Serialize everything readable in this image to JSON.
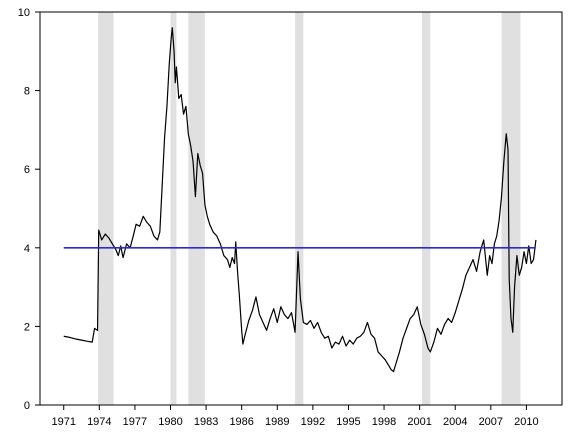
{
  "chart_data": {
    "type": "line",
    "title": "",
    "xlabel": "",
    "ylabel": "",
    "xlim": [
      1969.0,
      2013.0
    ],
    "ylim": [
      0,
      10
    ],
    "grid": false,
    "x_ticks": [
      {
        "value": 1971,
        "label": "1971"
      },
      {
        "value": 1974,
        "label": "1974"
      },
      {
        "value": 1977,
        "label": "1977"
      },
      {
        "value": 1980,
        "label": "1980"
      },
      {
        "value": 1983,
        "label": "1983"
      },
      {
        "value": 1986,
        "label": "1986"
      },
      {
        "value": 1989,
        "label": "1989"
      },
      {
        "value": 1992,
        "label": "1992"
      },
      {
        "value": 1995,
        "label": "1995"
      },
      {
        "value": 1998,
        "label": "1998"
      },
      {
        "value": 2001,
        "label": "2001"
      },
      {
        "value": 2004,
        "label": "2004"
      },
      {
        "value": 2007,
        "label": "2007"
      },
      {
        "value": 2010,
        "label": "2010"
      }
    ],
    "y_ticks": [
      {
        "value": 0,
        "label": "0"
      },
      {
        "value": 2,
        "label": "2"
      },
      {
        "value": 4,
        "label": "4"
      },
      {
        "value": 6,
        "label": "6"
      },
      {
        "value": 8,
        "label": "8"
      },
      {
        "value": 10,
        "label": "10"
      }
    ],
    "shaded_periods": [
      [
        1973.9,
        1975.2
      ],
      [
        1980.0,
        1980.5
      ],
      [
        1981.5,
        1982.9
      ],
      [
        1990.5,
        1991.2
      ],
      [
        2001.2,
        2001.9
      ],
      [
        2007.9,
        2009.5
      ]
    ],
    "shade_color": "#e0e0e0",
    "series": [
      {
        "color": "#000000",
        "points": [
          [
            1971.0,
            1.75
          ],
          [
            1971.5,
            1.72
          ],
          [
            1972.0,
            1.68
          ],
          [
            1972.5,
            1.65
          ],
          [
            1973.0,
            1.62
          ],
          [
            1973.4,
            1.6
          ],
          [
            1973.6,
            1.95
          ],
          [
            1973.85,
            1.9
          ],
          [
            1973.95,
            4.45
          ],
          [
            1974.2,
            4.2
          ],
          [
            1974.5,
            4.35
          ],
          [
            1974.8,
            4.25
          ],
          [
            1975.1,
            4.1
          ],
          [
            1975.4,
            3.95
          ],
          [
            1975.6,
            3.8
          ],
          [
            1975.8,
            4.05
          ],
          [
            1976.0,
            3.75
          ],
          [
            1976.3,
            4.1
          ],
          [
            1976.6,
            4.0
          ],
          [
            1976.9,
            4.35
          ],
          [
            1977.1,
            4.6
          ],
          [
            1977.4,
            4.55
          ],
          [
            1977.7,
            4.8
          ],
          [
            1978.0,
            4.65
          ],
          [
            1978.3,
            4.55
          ],
          [
            1978.6,
            4.3
          ],
          [
            1978.9,
            4.2
          ],
          [
            1979.1,
            4.4
          ],
          [
            1979.3,
            5.6
          ],
          [
            1979.5,
            6.8
          ],
          [
            1979.7,
            7.6
          ],
          [
            1979.9,
            8.7
          ],
          [
            1980.05,
            9.3
          ],
          [
            1980.15,
            9.6
          ],
          [
            1980.3,
            9.0
          ],
          [
            1980.4,
            8.2
          ],
          [
            1980.5,
            8.6
          ],
          [
            1980.7,
            7.8
          ],
          [
            1980.9,
            7.9
          ],
          [
            1981.1,
            7.4
          ],
          [
            1981.3,
            7.6
          ],
          [
            1981.5,
            6.9
          ],
          [
            1981.7,
            6.6
          ],
          [
            1981.9,
            6.2
          ],
          [
            1982.1,
            5.3
          ],
          [
            1982.3,
            6.4
          ],
          [
            1982.5,
            6.1
          ],
          [
            1982.7,
            5.9
          ],
          [
            1982.9,
            5.1
          ],
          [
            1983.1,
            4.8
          ],
          [
            1983.3,
            4.6
          ],
          [
            1983.6,
            4.4
          ],
          [
            1983.9,
            4.3
          ],
          [
            1984.2,
            4.1
          ],
          [
            1984.5,
            3.8
          ],
          [
            1984.8,
            3.7
          ],
          [
            1985.0,
            3.5
          ],
          [
            1985.2,
            3.75
          ],
          [
            1985.4,
            3.6
          ],
          [
            1985.5,
            4.15
          ],
          [
            1985.65,
            3.4
          ],
          [
            1985.8,
            2.8
          ],
          [
            1986.0,
            1.9
          ],
          [
            1986.1,
            1.55
          ],
          [
            1986.3,
            1.8
          ],
          [
            1986.6,
            2.15
          ],
          [
            1986.9,
            2.4
          ],
          [
            1987.2,
            2.75
          ],
          [
            1987.5,
            2.3
          ],
          [
            1987.8,
            2.1
          ],
          [
            1988.1,
            1.9
          ],
          [
            1988.4,
            2.2
          ],
          [
            1988.7,
            2.45
          ],
          [
            1989.0,
            2.1
          ],
          [
            1989.3,
            2.5
          ],
          [
            1989.6,
            2.3
          ],
          [
            1989.9,
            2.2
          ],
          [
            1990.2,
            2.35
          ],
          [
            1990.5,
            1.85
          ],
          [
            1990.75,
            3.9
          ],
          [
            1990.95,
            2.7
          ],
          [
            1991.2,
            2.1
          ],
          [
            1991.5,
            2.05
          ],
          [
            1991.8,
            2.15
          ],
          [
            1992.1,
            1.95
          ],
          [
            1992.4,
            2.1
          ],
          [
            1992.7,
            1.85
          ],
          [
            1993.0,
            1.7
          ],
          [
            1993.3,
            1.75
          ],
          [
            1993.6,
            1.45
          ],
          [
            1993.9,
            1.6
          ],
          [
            1994.2,
            1.55
          ],
          [
            1994.5,
            1.75
          ],
          [
            1994.8,
            1.5
          ],
          [
            1995.1,
            1.65
          ],
          [
            1995.4,
            1.55
          ],
          [
            1995.7,
            1.7
          ],
          [
            1996.0,
            1.75
          ],
          [
            1996.3,
            1.85
          ],
          [
            1996.6,
            2.1
          ],
          [
            1996.9,
            1.8
          ],
          [
            1997.2,
            1.7
          ],
          [
            1997.5,
            1.35
          ],
          [
            1997.8,
            1.25
          ],
          [
            1998.1,
            1.15
          ],
          [
            1998.4,
            1.0
          ],
          [
            1998.6,
            0.9
          ],
          [
            1998.8,
            0.85
          ],
          [
            1999.0,
            1.05
          ],
          [
            1999.3,
            1.35
          ],
          [
            1999.6,
            1.7
          ],
          [
            1999.9,
            1.95
          ],
          [
            2000.2,
            2.2
          ],
          [
            2000.5,
            2.3
          ],
          [
            2000.8,
            2.5
          ],
          [
            2001.1,
            2.05
          ],
          [
            2001.4,
            1.8
          ],
          [
            2001.7,
            1.45
          ],
          [
            2001.9,
            1.35
          ],
          [
            2002.2,
            1.6
          ],
          [
            2002.5,
            1.95
          ],
          [
            2002.8,
            1.8
          ],
          [
            2003.1,
            2.05
          ],
          [
            2003.4,
            2.2
          ],
          [
            2003.7,
            2.1
          ],
          [
            2004.0,
            2.35
          ],
          [
            2004.3,
            2.65
          ],
          [
            2004.6,
            2.95
          ],
          [
            2004.9,
            3.3
          ],
          [
            2005.2,
            3.5
          ],
          [
            2005.5,
            3.7
          ],
          [
            2005.8,
            3.4
          ],
          [
            2006.1,
            3.9
          ],
          [
            2006.4,
            4.2
          ],
          [
            2006.7,
            3.3
          ],
          [
            2006.9,
            3.8
          ],
          [
            2007.1,
            3.6
          ],
          [
            2007.3,
            4.1
          ],
          [
            2007.5,
            4.3
          ],
          [
            2007.7,
            4.7
          ],
          [
            2007.9,
            5.3
          ],
          [
            2008.1,
            6.2
          ],
          [
            2008.3,
            6.9
          ],
          [
            2008.45,
            6.5
          ],
          [
            2008.55,
            3.2
          ],
          [
            2008.7,
            2.2
          ],
          [
            2008.85,
            1.85
          ],
          [
            2009.0,
            3.0
          ],
          [
            2009.2,
            3.8
          ],
          [
            2009.4,
            3.3
          ],
          [
            2009.6,
            3.5
          ],
          [
            2009.8,
            3.9
          ],
          [
            2010.0,
            3.6
          ],
          [
            2010.2,
            4.05
          ],
          [
            2010.4,
            3.6
          ],
          [
            2010.6,
            3.7
          ],
          [
            2010.8,
            4.2
          ]
        ]
      },
      {
        "color": "#2b2bd6",
        "points": [
          [
            1971.0,
            4.0
          ],
          [
            2010.8,
            4.0
          ]
        ]
      }
    ]
  }
}
